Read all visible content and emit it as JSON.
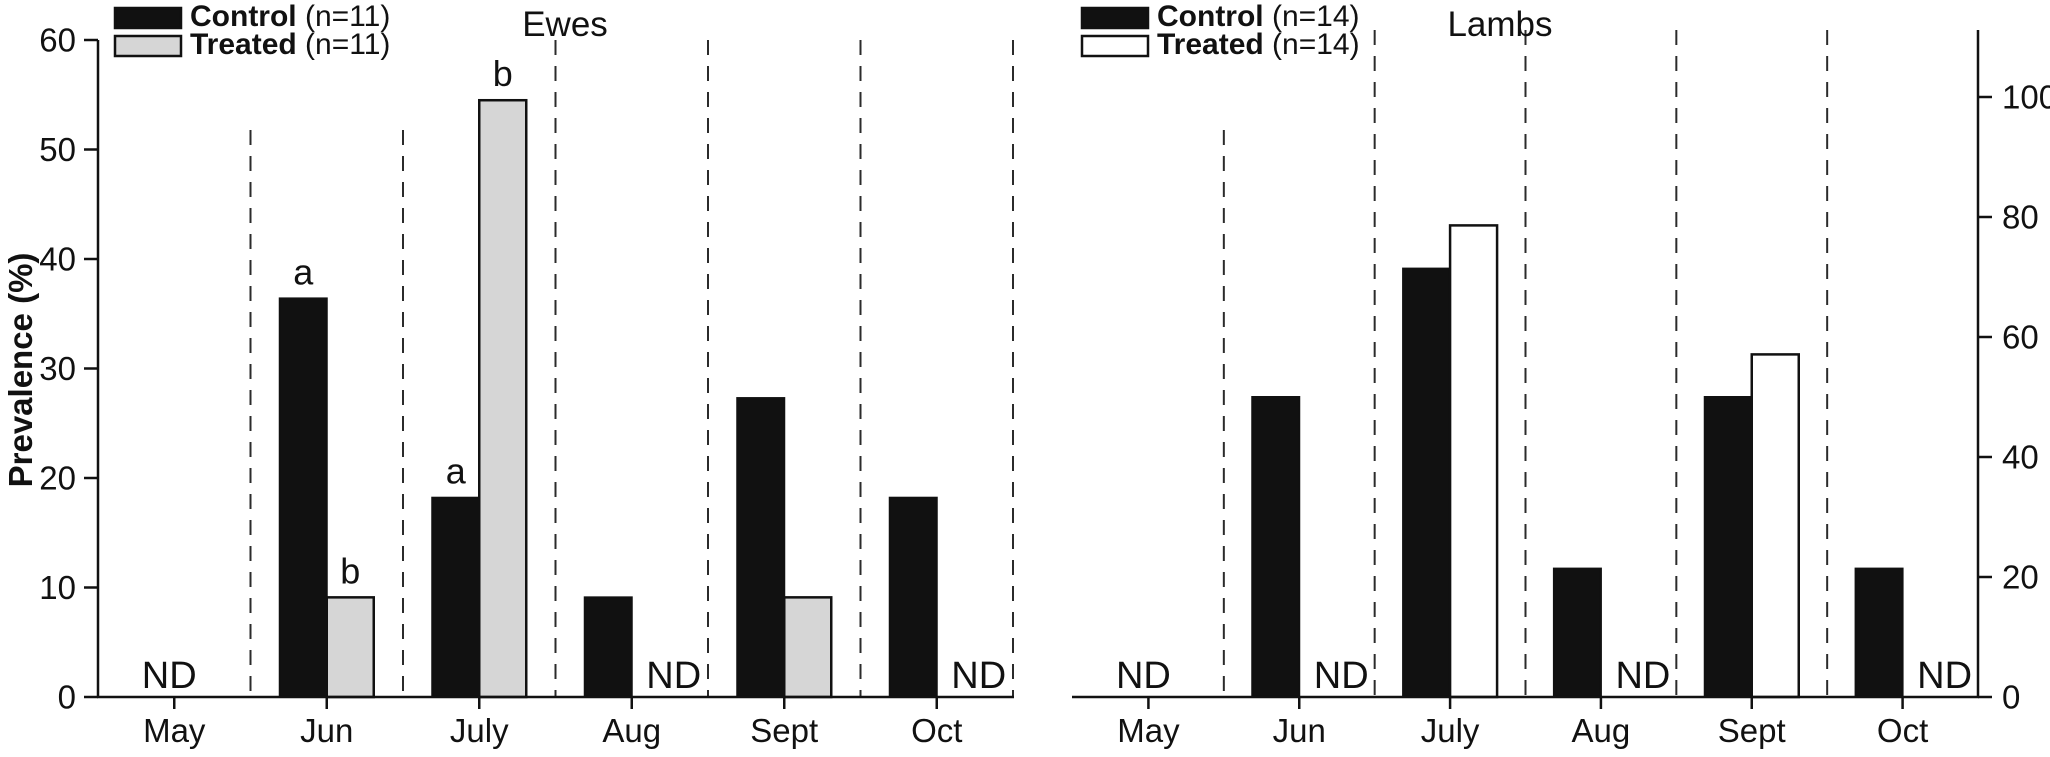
{
  "figure": {
    "ylabel": "Prevalence (%)",
    "nd_label": "ND",
    "colors": {
      "axis": "#111111",
      "control_fill": "#111111",
      "treated_fill_left": "#d6d6d6",
      "treated_fill_right": "#ffffff",
      "bar_stroke": "#111111",
      "dashed_line": "#2b2b2b",
      "background": "#ffffff"
    }
  },
  "chart_data": [
    {
      "type": "bar",
      "title": "Ewes",
      "axis_side": "left",
      "ylabel": "Prevalence (%)",
      "ylim": [
        0,
        60
      ],
      "yticks": [
        0,
        10,
        20,
        30,
        40,
        50,
        60
      ],
      "categories": [
        "May",
        "Jun",
        "July",
        "Aug",
        "Sept",
        "Oct"
      ],
      "series": [
        {
          "name": "Control",
          "n_suffix": " (n=11)",
          "fill": "#111111",
          "values": [
            null,
            36.4,
            18.2,
            9.1,
            27.3,
            18.2
          ]
        },
        {
          "name": "Treated",
          "n_suffix": " (n=11)",
          "fill": "#d6d6d6",
          "values": [
            null,
            9.1,
            54.5,
            null,
            9.1,
            null
          ]
        }
      ],
      "sig_letters_control": [
        null,
        "a",
        "a",
        null,
        null,
        null
      ],
      "sig_letters_treated": [
        null,
        "b",
        "b",
        null,
        null,
        null
      ],
      "nd_months_both": [
        "May"
      ],
      "nd_months_treated": [
        "Aug",
        "Oct"
      ],
      "grid": "dashed-vertical-separators",
      "legend_position": "top-left"
    },
    {
      "type": "bar",
      "title": "Lambs",
      "axis_side": "right",
      "ylim": [
        0,
        110
      ],
      "yticks": [
        0,
        20,
        40,
        60,
        80,
        100
      ],
      "categories": [
        "May",
        "Jun",
        "July",
        "Aug",
        "Sept",
        "Oct"
      ],
      "series": [
        {
          "name": "Control",
          "n_suffix": " (n=14)",
          "fill": "#111111",
          "values": [
            null,
            50.0,
            71.4,
            21.4,
            50.0,
            21.4
          ]
        },
        {
          "name": "Treated",
          "n_suffix": " (n=14)",
          "fill": "#ffffff",
          "values": [
            null,
            null,
            78.6,
            null,
            57.1,
            null
          ]
        }
      ],
      "sig_letters_control": [
        null,
        null,
        null,
        null,
        null,
        null
      ],
      "sig_letters_treated": [
        null,
        null,
        null,
        null,
        null,
        null
      ],
      "nd_months_both": [
        "May"
      ],
      "nd_months_treated": [
        "Jun",
        "Aug",
        "Oct"
      ],
      "grid": "dashed-vertical-separators",
      "legend_position": "top-left"
    }
  ]
}
